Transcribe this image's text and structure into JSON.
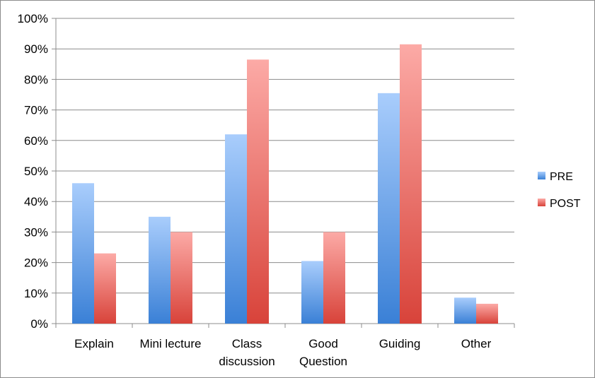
{
  "chart_data": {
    "type": "bar",
    "categories": [
      [
        "Explain"
      ],
      [
        "Mini lecture"
      ],
      [
        "Class",
        "discussion"
      ],
      [
        "Good",
        "Question"
      ],
      [
        "Guiding"
      ],
      [
        "Other"
      ]
    ],
    "series": [
      {
        "name": "PRE",
        "values": [
          46,
          35,
          62,
          20.5,
          75.5,
          8.5
        ],
        "color_top": "#a9cdfc",
        "color_bottom": "#3a80d6"
      },
      {
        "name": "POST",
        "values": [
          23,
          30,
          86.5,
          30,
          91.5,
          6.5
        ],
        "color_top": "#fcaaa6",
        "color_bottom": "#d8433a"
      }
    ],
    "y_ticks": [
      "0%",
      "10%",
      "20%",
      "30%",
      "40%",
      "50%",
      "60%",
      "70%",
      "80%",
      "90%",
      "100%"
    ],
    "ylim": [
      0,
      100
    ],
    "grid": true,
    "legend_position": "right"
  }
}
